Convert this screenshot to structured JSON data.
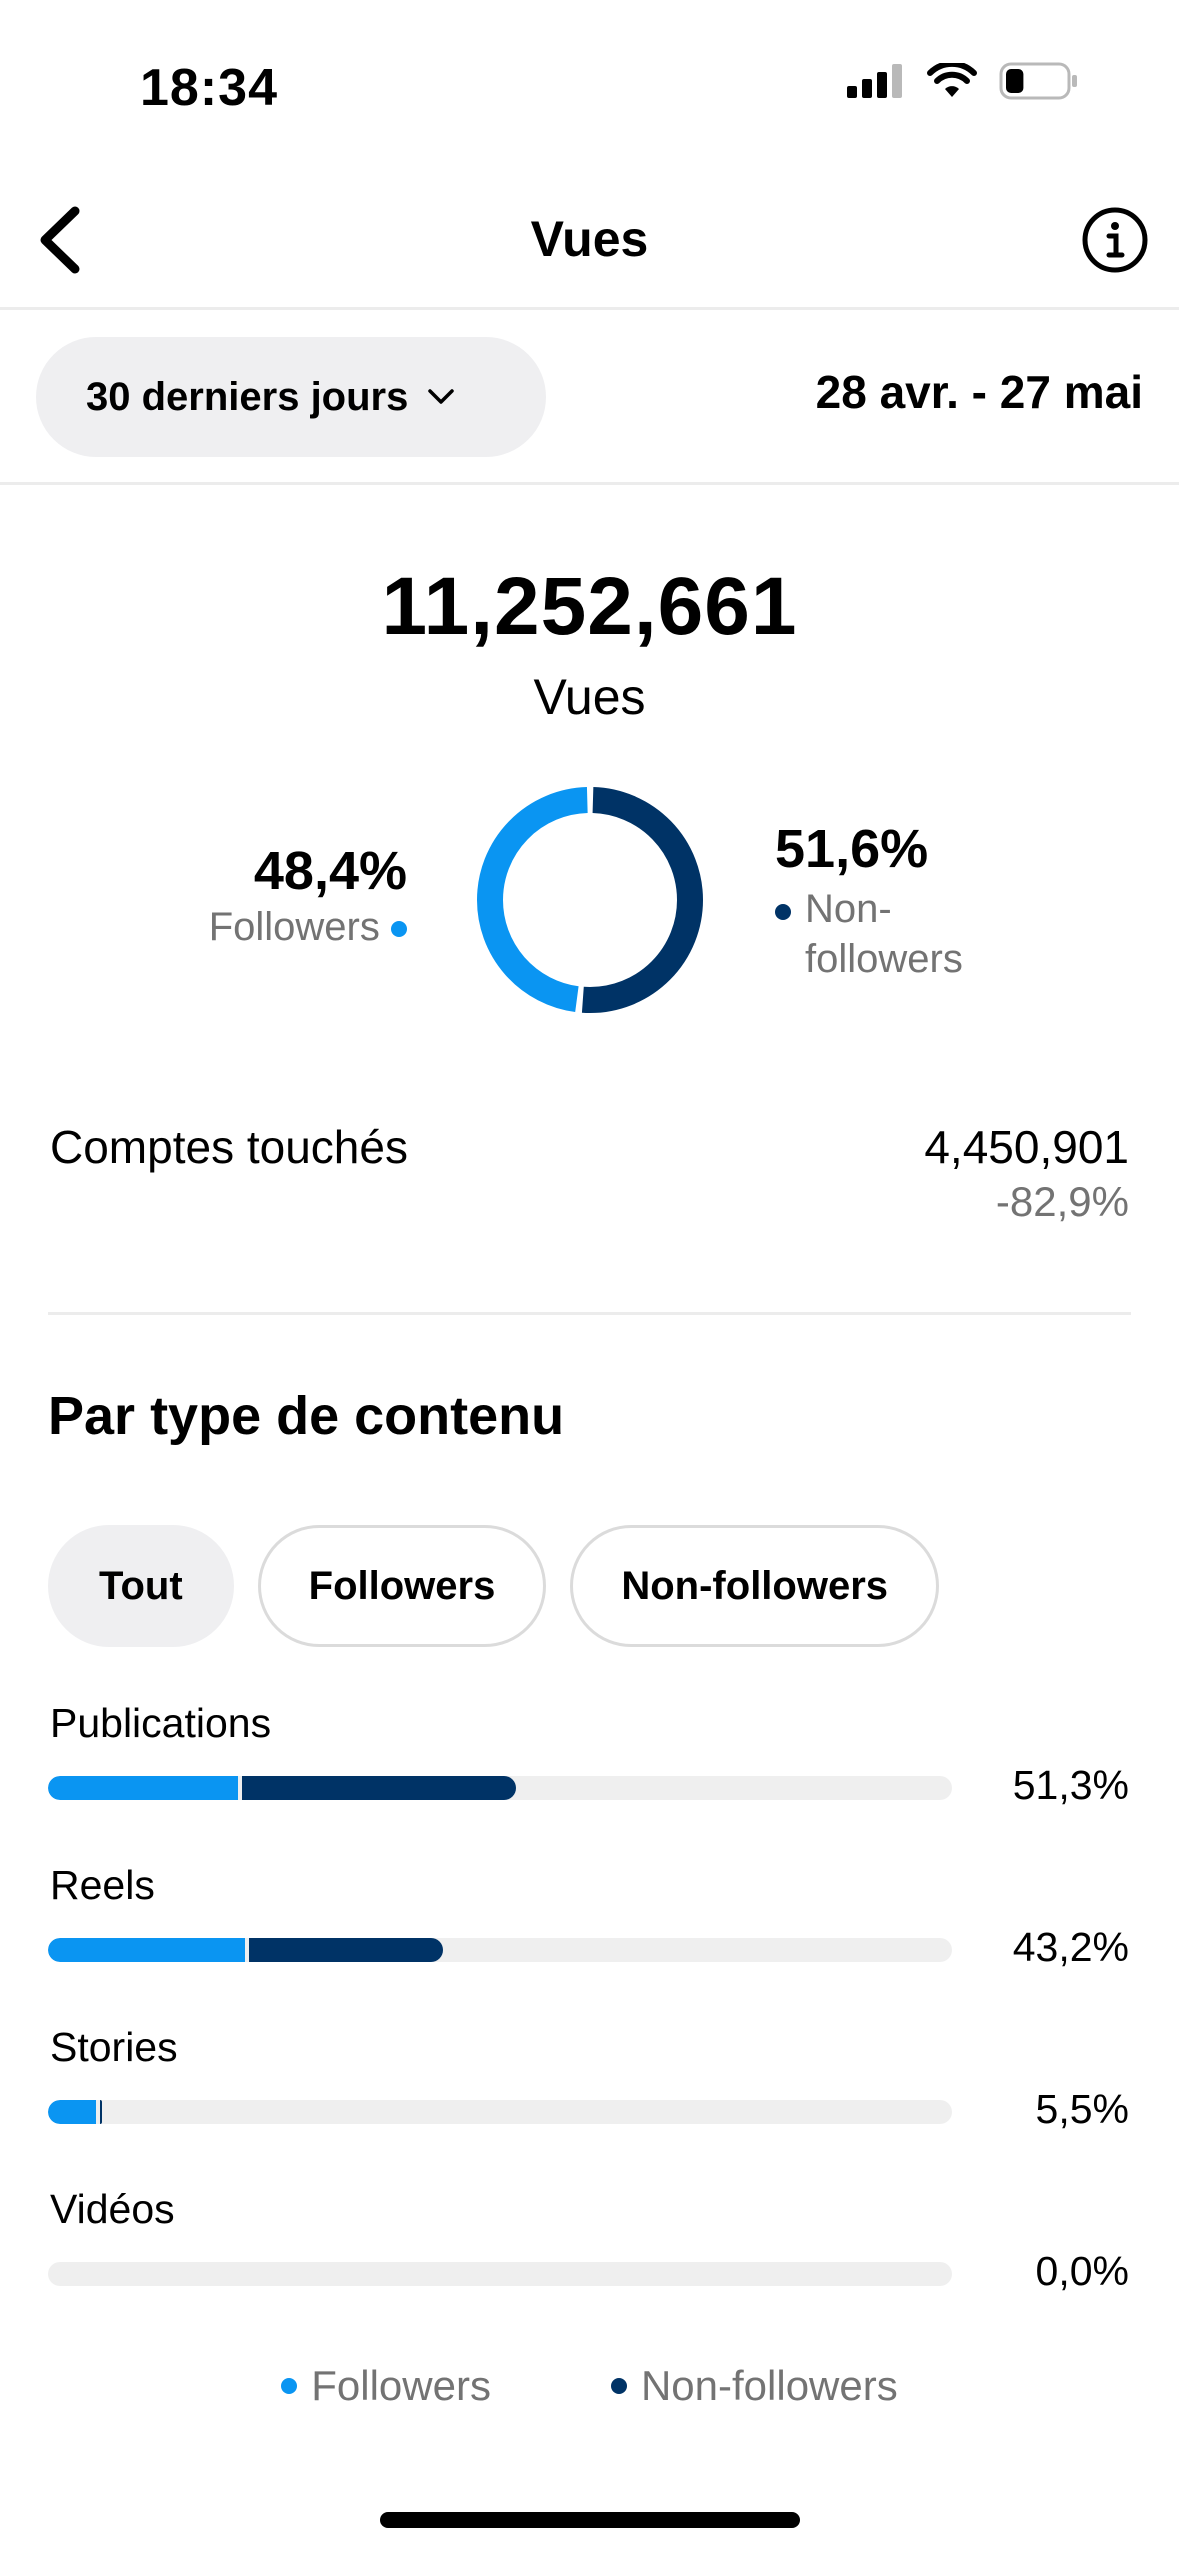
{
  "status_bar": {
    "time": "18:34",
    "icons": [
      "cellular-signal-icon",
      "wifi-icon",
      "battery-icon"
    ],
    "battery_level": 0.3
  },
  "nav": {
    "title": "Vues",
    "back_icon": "chevron-left-icon",
    "info_icon": "info-icon"
  },
  "filter": {
    "period_label": "30 derniers jours",
    "date_range": "28 avr. - 27 mai"
  },
  "summary": {
    "total": "11,252,661",
    "total_label": "Vues",
    "followers_pct": "48,4%",
    "followers_label": "Followers",
    "followers_fraction": 0.484,
    "nonfollowers_pct": "51,6%",
    "nonfollowers_label": "Non-followers",
    "nonfollowers_label_line1": "Non-",
    "nonfollowers_label_line2": "followers",
    "nonfollowers_fraction": 0.516
  },
  "colors": {
    "followers": "#0a95f2",
    "nonfollowers": "#003366",
    "track": "#efefef"
  },
  "reached": {
    "label": "Comptes touchés",
    "value": "4,450,901",
    "change": "-82,9%"
  },
  "content_type": {
    "title": "Par type de contenu",
    "chips": [
      {
        "label": "Tout",
        "active": true
      },
      {
        "label": "Followers",
        "active": false
      },
      {
        "label": "Non-followers",
        "active": false
      }
    ],
    "rows": [
      {
        "label": "Publications",
        "pct": "51,3%",
        "followers": 0.21,
        "nonfollowers": 0.303
      },
      {
        "label": "Reels",
        "pct": "43,2%",
        "followers": 0.218,
        "nonfollowers": 0.214
      },
      {
        "label": "Stories",
        "pct": "5,5%",
        "followers": 0.053,
        "nonfollowers": 0.002
      },
      {
        "label": "Vidéos",
        "pct": "0,0%",
        "followers": 0.0,
        "nonfollowers": 0.0
      }
    ],
    "legend": [
      "Followers",
      "Non-followers"
    ]
  }
}
